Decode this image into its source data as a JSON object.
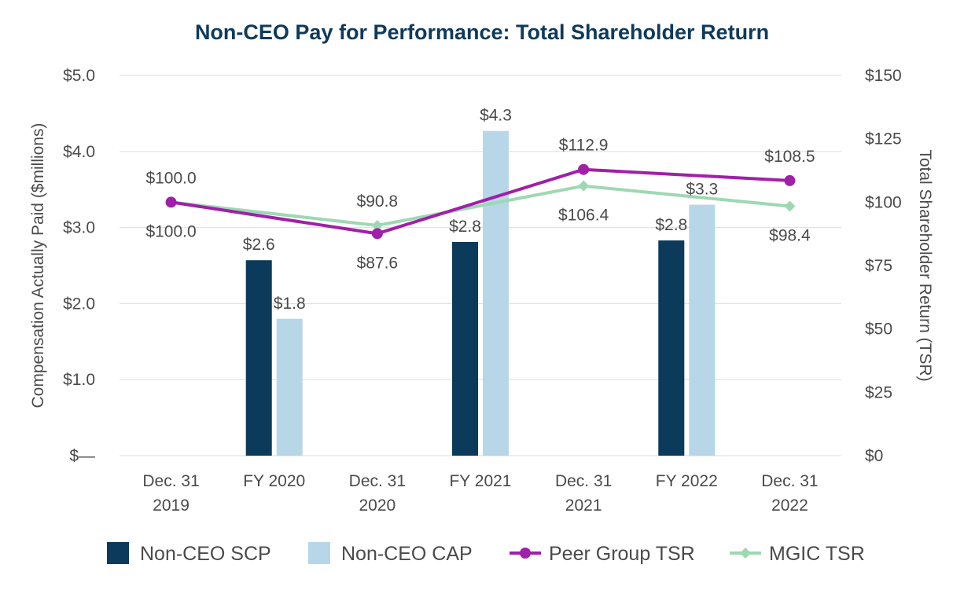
{
  "chart_data": {
    "type": "bar",
    "title": "Non-CEO Pay for Performance: Total Shareholder Return",
    "ylabel": "Compensation Actually Paid ($millions)",
    "y2label": "Total Shareholder Return (TSR)",
    "ylim": [
      0,
      5
    ],
    "y2lim": [
      0,
      150
    ],
    "y_ticks": [
      {
        "value": 0,
        "label": "$—"
      },
      {
        "value": 1,
        "label": "$1.0"
      },
      {
        "value": 2,
        "label": "$2.0"
      },
      {
        "value": 3,
        "label": "$3.0"
      },
      {
        "value": 4,
        "label": "$4.0"
      },
      {
        "value": 5,
        "label": "$5.0"
      }
    ],
    "y2_ticks": [
      {
        "value": 0,
        "label": "$0"
      },
      {
        "value": 25,
        "label": "$25"
      },
      {
        "value": 50,
        "label": "$50"
      },
      {
        "value": 75,
        "label": "$75"
      },
      {
        "value": 100,
        "label": "$100"
      },
      {
        "value": 125,
        "label": "$125"
      },
      {
        "value": 150,
        "label": "$150"
      }
    ],
    "categories": [
      [
        "Dec. 31",
        "2019"
      ],
      [
        "FY 2020"
      ],
      [
        "Dec. 31",
        "2020"
      ],
      [
        "FY 2021"
      ],
      [
        "Dec. 31",
        "2021"
      ],
      [
        "FY 2022"
      ],
      [
        "Dec. 31",
        "2022"
      ]
    ],
    "grid": true,
    "legend_position": "bottom",
    "bar_series": [
      {
        "name": "Non-CEO SCP",
        "color": "#0b3a5a",
        "points": [
          {
            "category_index": 1,
            "value": 2.57,
            "label": "$2.6"
          },
          {
            "category_index": 3,
            "value": 2.81,
            "label": "$2.8"
          },
          {
            "category_index": 5,
            "value": 2.83,
            "label": "$2.8"
          }
        ]
      },
      {
        "name": "Non-CEO CAP",
        "color": "#b7d7e8",
        "points": [
          {
            "category_index": 1,
            "value": 1.8,
            "label": "$1.8"
          },
          {
            "category_index": 3,
            "value": 4.27,
            "label": "$4.3"
          },
          {
            "category_index": 5,
            "value": 3.3,
            "label": "$3.3"
          }
        ]
      }
    ],
    "line_series": [
      {
        "name": "Peer Group TSR",
        "color": "#a020a8",
        "marker": "circle",
        "axis": "right",
        "points": [
          {
            "category_index": 0,
            "value": 100.0,
            "label": "$100.0",
            "label_pos": "below"
          },
          {
            "category_index": 2,
            "value": 87.6,
            "label": "$87.6",
            "label_pos": "below"
          },
          {
            "category_index": 4,
            "value": 112.9,
            "label": "$112.9",
            "label_pos": "above"
          },
          {
            "category_index": 6,
            "value": 108.5,
            "label": "$108.5",
            "label_pos": "above"
          }
        ]
      },
      {
        "name": "MGIC TSR",
        "color": "#9ed8b2",
        "marker": "diamond",
        "axis": "right",
        "points": [
          {
            "category_index": 0,
            "value": 100.0,
            "label": "$100.0",
            "label_pos": "above"
          },
          {
            "category_index": 2,
            "value": 90.8,
            "label": "$90.8",
            "label_pos": "above"
          },
          {
            "category_index": 4,
            "value": 106.4,
            "label": "$106.4",
            "label_pos": "below"
          },
          {
            "category_index": 6,
            "value": 98.4,
            "label": "$98.4",
            "label_pos": "below"
          }
        ]
      }
    ]
  }
}
